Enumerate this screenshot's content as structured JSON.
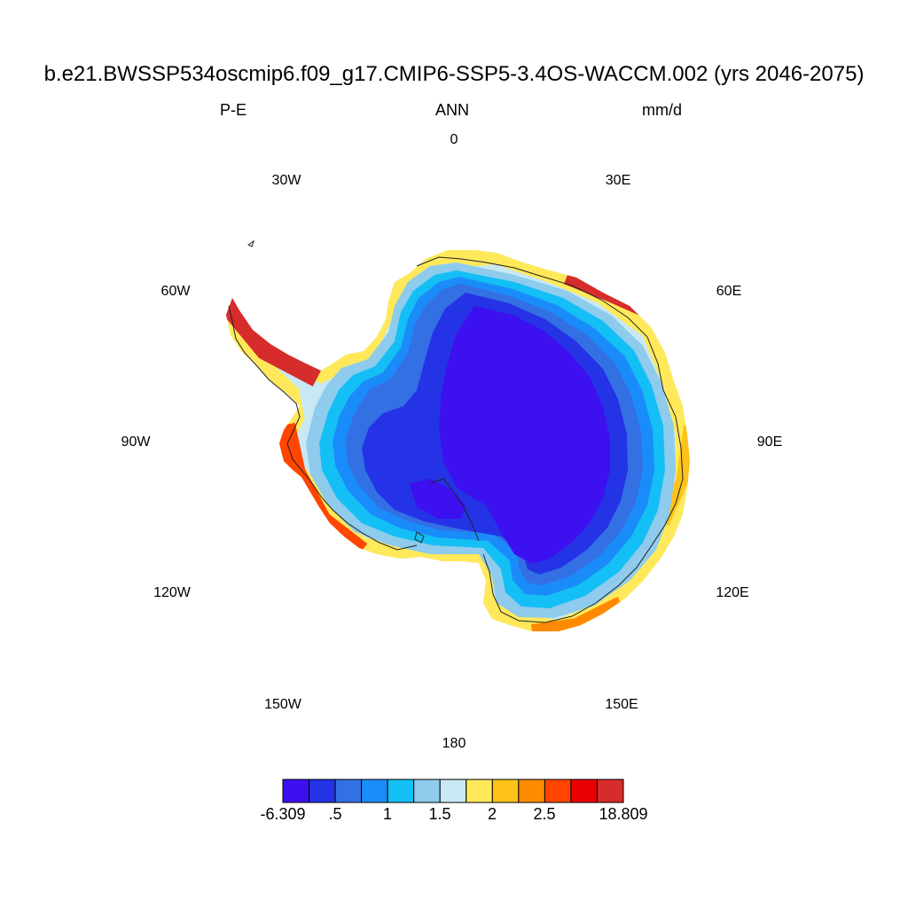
{
  "title": "b.e21.BWSSP534oscmip6.f09_g17.CMIP6-SSP5-3.4OS-WACCM.002 (yrs 2046-2075)",
  "left_subtitle": "P-E",
  "center_subtitle": "ANN",
  "right_subtitle": "mm/d",
  "longitude_labels": {
    "lon_0": "0",
    "lon_30e": "30E",
    "lon_60e": "60E",
    "lon_90e": "90E",
    "lon_120e": "120E",
    "lon_150e": "150E",
    "lon_180": "180",
    "lon_150w": "150W",
    "lon_120w": "120W",
    "lon_90w": "90W",
    "lon_60w": "60W",
    "lon_30w": "30W"
  },
  "colorbar": {
    "colors": [
      "#3d10f0",
      "#2433e6",
      "#3370e3",
      "#1a8cfa",
      "#14bff5",
      "#8ecbec",
      "#c8e8f4",
      "#ffe95a",
      "#ffc21a",
      "#ff8a00",
      "#ff4500",
      "#ea0000",
      "#d62c2c"
    ],
    "labels": {
      "min": "-6.309",
      "l_05": ".5",
      "l_1": "1",
      "l_15": "1.5",
      "l_2": "2",
      "l_25": "2.5",
      "max": "18.809"
    }
  }
}
